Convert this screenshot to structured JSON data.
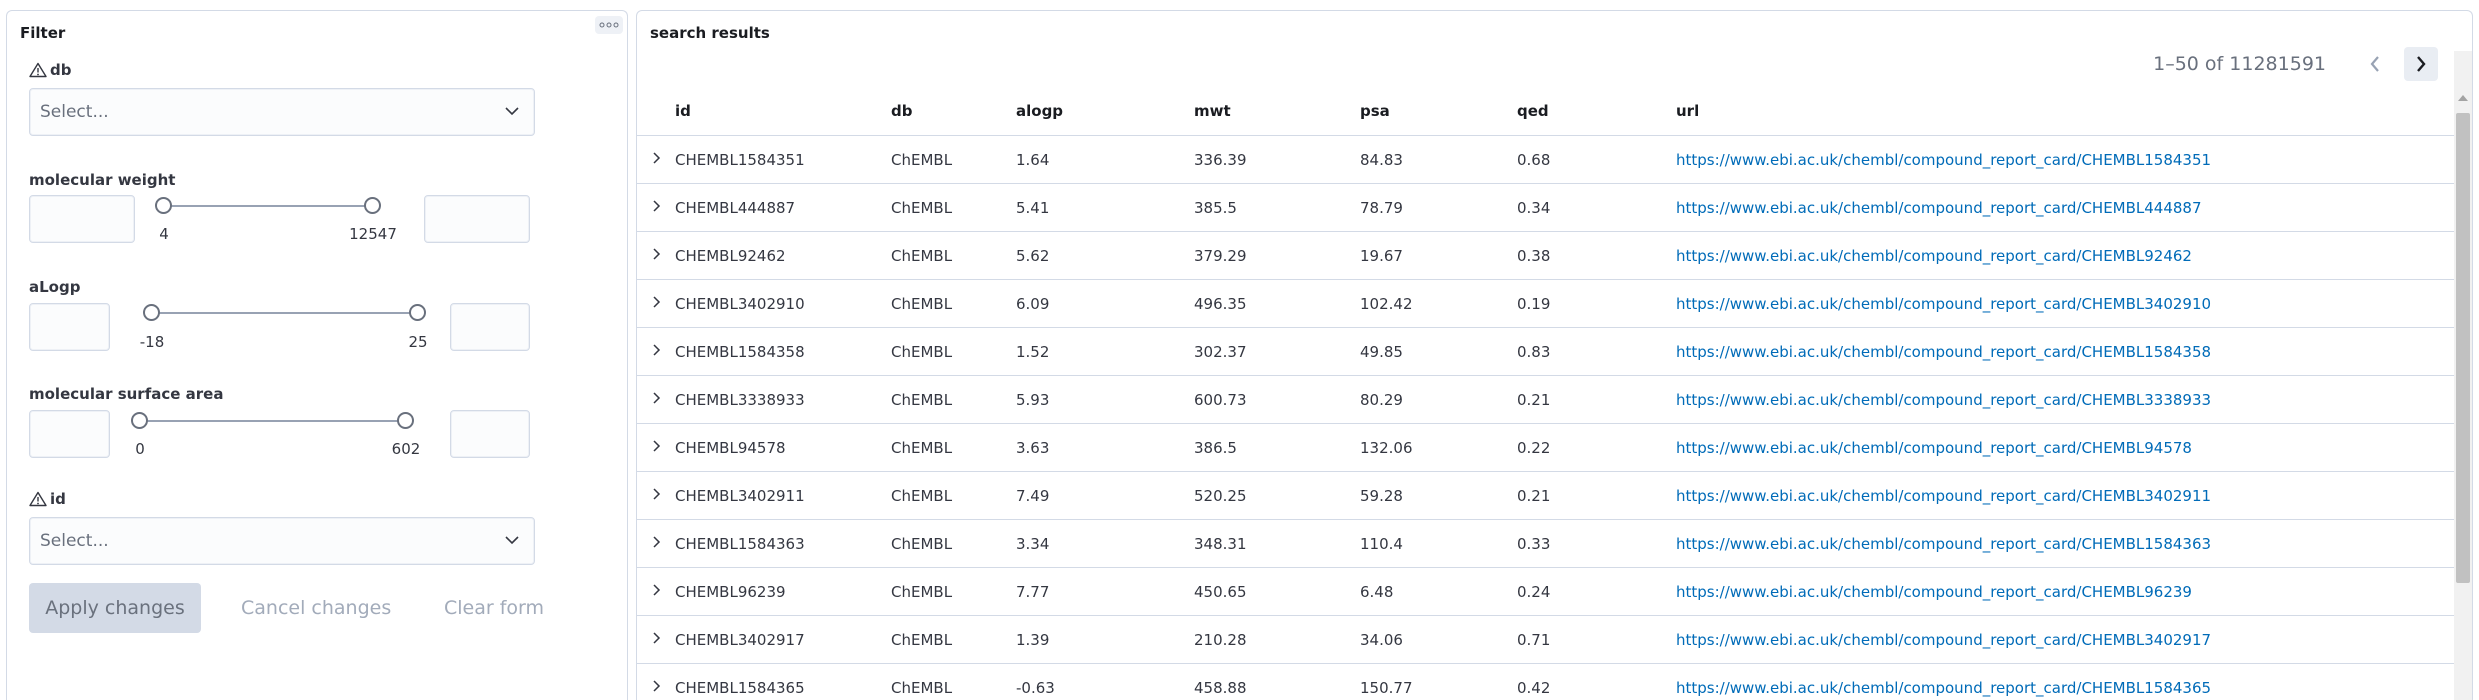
{
  "filter": {
    "title": "Filter",
    "db": {
      "label": "db",
      "placeholder": "Select..."
    },
    "molecular_weight": {
      "label": "molecular weight",
      "min_label": "4",
      "max_label": "12547"
    },
    "alogp": {
      "label": "aLogp",
      "min_label": "-18",
      "max_label": "25"
    },
    "surface_area": {
      "label": "molecular surface area",
      "min_label": "0",
      "max_label": "602"
    },
    "id": {
      "label": "id",
      "placeholder": "Select..."
    },
    "buttons": {
      "apply": "Apply changes",
      "cancel": "Cancel changes",
      "clear": "Clear form"
    }
  },
  "results": {
    "title": "search results",
    "pagination": "1–50 of 11281591",
    "columns": [
      "id",
      "db",
      "alogp",
      "mwt",
      "psa",
      "qed",
      "url"
    ],
    "rows": [
      [
        "CHEMBL1584351",
        "ChEMBL",
        "1.64",
        "336.39",
        "84.83",
        "0.68",
        "https://www.ebi.ac.uk/chembl/compound_report_card/CHEMBL1584351"
      ],
      [
        "CHEMBL444887",
        "ChEMBL",
        "5.41",
        "385.5",
        "78.79",
        "0.34",
        "https://www.ebi.ac.uk/chembl/compound_report_card/CHEMBL444887"
      ],
      [
        "CHEMBL92462",
        "ChEMBL",
        "5.62",
        "379.29",
        "19.67",
        "0.38",
        "https://www.ebi.ac.uk/chembl/compound_report_card/CHEMBL92462"
      ],
      [
        "CHEMBL3402910",
        "ChEMBL",
        "6.09",
        "496.35",
        "102.42",
        "0.19",
        "https://www.ebi.ac.uk/chembl/compound_report_card/CHEMBL3402910"
      ],
      [
        "CHEMBL1584358",
        "ChEMBL",
        "1.52",
        "302.37",
        "49.85",
        "0.83",
        "https://www.ebi.ac.uk/chembl/compound_report_card/CHEMBL1584358"
      ],
      [
        "CHEMBL3338933",
        "ChEMBL",
        "5.93",
        "600.73",
        "80.29",
        "0.21",
        "https://www.ebi.ac.uk/chembl/compound_report_card/CHEMBL3338933"
      ],
      [
        "CHEMBL94578",
        "ChEMBL",
        "3.63",
        "386.5",
        "132.06",
        "0.22",
        "https://www.ebi.ac.uk/chembl/compound_report_card/CHEMBL94578"
      ],
      [
        "CHEMBL3402911",
        "ChEMBL",
        "7.49",
        "520.25",
        "59.28",
        "0.21",
        "https://www.ebi.ac.uk/chembl/compound_report_card/CHEMBL3402911"
      ],
      [
        "CHEMBL1584363",
        "ChEMBL",
        "3.34",
        "348.31",
        "110.4",
        "0.33",
        "https://www.ebi.ac.uk/chembl/compound_report_card/CHEMBL1584363"
      ],
      [
        "CHEMBL96239",
        "ChEMBL",
        "7.77",
        "450.65",
        "6.48",
        "0.24",
        "https://www.ebi.ac.uk/chembl/compound_report_card/CHEMBL96239"
      ],
      [
        "CHEMBL3402917",
        "ChEMBL",
        "1.39",
        "210.28",
        "34.06",
        "0.71",
        "https://www.ebi.ac.uk/chembl/compound_report_card/CHEMBL3402917"
      ],
      [
        "CHEMBL1584365",
        "ChEMBL",
        "-0.63",
        "458.88",
        "150.77",
        "0.42",
        "https://www.ebi.ac.uk/chembl/compound_report_card/CHEMBL1584365"
      ]
    ]
  },
  "icons": {
    "warning": "warning-triangle-icon",
    "chevron_down": "chevron-down-icon",
    "expand": "chevron-right-icon",
    "prev": "chevron-left-icon",
    "next": "chevron-right-icon",
    "drag": "drag-handle-icon"
  },
  "colors": {
    "link": "#006bb8",
    "border": "#d3dae6",
    "disabled_button_bg": "#d3dae6"
  }
}
